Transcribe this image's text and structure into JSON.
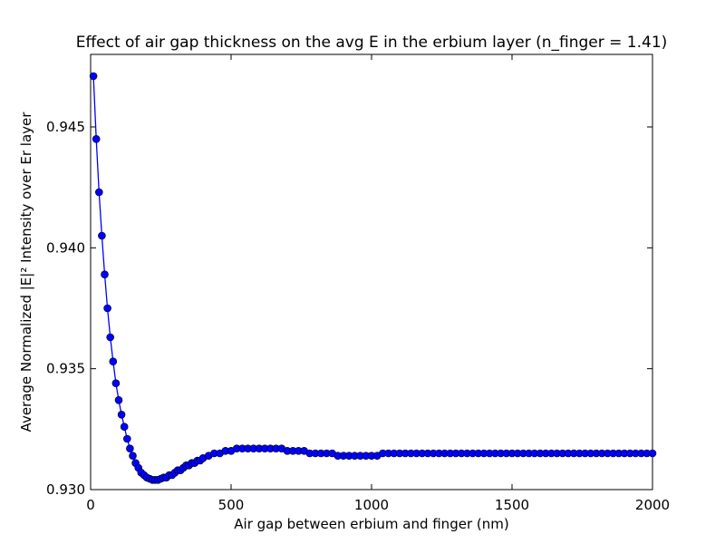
{
  "chart_data": {
    "type": "line",
    "title": "Effect of air gap thickness on the avg E in the erbium layer (n_finger = 1.41)",
    "xlabel": "Air gap between erbium and finger (nm)",
    "ylabel": "Average Normalized |E|² Intensity over Er layer",
    "xlim": [
      0,
      2000
    ],
    "ylim": [
      0.93,
      0.948
    ],
    "xticks": [
      "0",
      "500",
      "1000",
      "1500",
      "2000"
    ],
    "xtick_values": [
      0,
      500,
      1000,
      1500,
      2000
    ],
    "yticks": [
      "0.930",
      "0.935",
      "0.940",
      "0.945"
    ],
    "ytick_values": [
      0.93,
      0.935,
      0.94,
      0.945
    ],
    "grid": false,
    "series": [
      {
        "color": "#0000ff",
        "marker": "circle",
        "x": [
          10,
          20,
          30,
          40,
          50,
          60,
          70,
          80,
          90,
          100,
          110,
          120,
          130,
          140,
          150,
          160,
          170,
          180,
          190,
          200,
          210,
          220,
          230,
          240,
          250,
          260,
          270,
          280,
          290,
          300,
          310,
          320,
          330,
          340,
          350,
          360,
          370,
          380,
          390,
          400,
          420,
          440,
          460,
          480,
          500,
          520,
          540,
          560,
          580,
          600,
          620,
          640,
          660,
          680,
          700,
          720,
          740,
          760,
          780,
          800,
          820,
          840,
          860,
          880,
          900,
          920,
          940,
          960,
          980,
          1000,
          1020,
          1040,
          1060,
          1080,
          1100,
          1120,
          1140,
          1160,
          1180,
          1200,
          1220,
          1240,
          1260,
          1280,
          1300,
          1320,
          1340,
          1360,
          1380,
          1400,
          1420,
          1440,
          1460,
          1480,
          1500,
          1520,
          1540,
          1560,
          1580,
          1600,
          1620,
          1640,
          1660,
          1680,
          1700,
          1720,
          1740,
          1760,
          1780,
          1800,
          1820,
          1840,
          1860,
          1880,
          1900,
          1920,
          1940,
          1960,
          1980,
          2000
        ],
        "y": [
          0.9471,
          0.9445,
          0.9423,
          0.9405,
          0.9389,
          0.9375,
          0.9363,
          0.9353,
          0.9344,
          0.9337,
          0.9331,
          0.9326,
          0.9321,
          0.9317,
          0.9314,
          0.9311,
          0.9309,
          0.9307,
          0.9306,
          0.9305,
          0.93045,
          0.9304,
          0.9304,
          0.9304,
          0.93045,
          0.9305,
          0.9305,
          0.9306,
          0.9306,
          0.9307,
          0.9308,
          0.9308,
          0.9309,
          0.931,
          0.931,
          0.9311,
          0.9311,
          0.9312,
          0.9312,
          0.9313,
          0.9314,
          0.9315,
          0.9315,
          0.9316,
          0.9316,
          0.9317,
          0.9317,
          0.9317,
          0.9317,
          0.9317,
          0.9317,
          0.9317,
          0.9317,
          0.9317,
          0.9316,
          0.9316,
          0.9316,
          0.9316,
          0.9315,
          0.9315,
          0.9315,
          0.9315,
          0.9315,
          0.9314,
          0.9314,
          0.9314,
          0.9314,
          0.9314,
          0.9314,
          0.9314,
          0.9314,
          0.9315,
          0.9315,
          0.9315,
          0.9315,
          0.9315,
          0.9315,
          0.9315,
          0.9315,
          0.9315,
          0.9315,
          0.9315,
          0.9315,
          0.9315,
          0.9315,
          0.9315,
          0.9315,
          0.9315,
          0.9315,
          0.9315,
          0.9315,
          0.9315,
          0.9315,
          0.9315,
          0.9315,
          0.9315,
          0.9315,
          0.9315,
          0.9315,
          0.9315,
          0.9315,
          0.9315,
          0.9315,
          0.9315,
          0.9315,
          0.9315,
          0.9315,
          0.9315,
          0.9315,
          0.9315,
          0.9315,
          0.9315,
          0.9315,
          0.9315,
          0.9315,
          0.9315,
          0.9315,
          0.9315,
          0.9315,
          0.9315
        ]
      }
    ]
  }
}
